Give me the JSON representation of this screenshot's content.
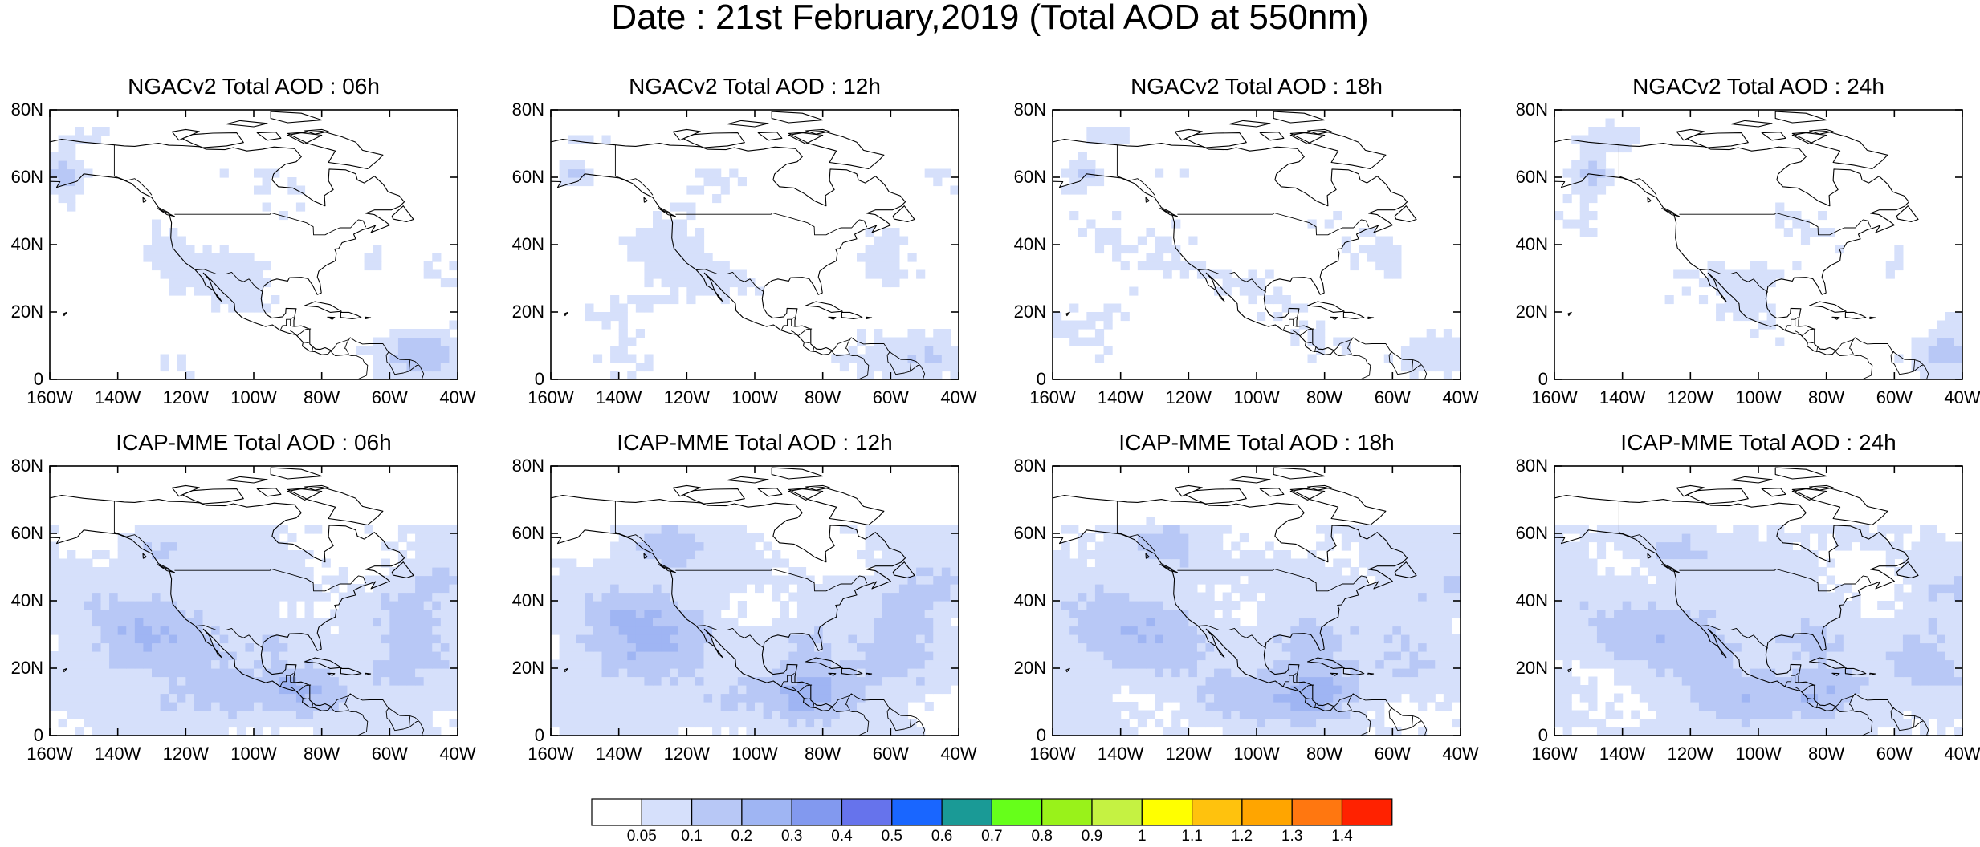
{
  "title": "Date : 21st February,2019 (Total AOD at 550nm)",
  "lat_ticks": [
    "80N",
    "60N",
    "40N",
    "20N",
    "0"
  ],
  "lon_ticks": [
    "160W",
    "140W",
    "120W",
    "100W",
    "80W",
    "60W",
    "40W"
  ],
  "panels": [
    {
      "title": "NGACv2 Total AOD : 06h",
      "model": "NGACv2",
      "hour": "06h"
    },
    {
      "title": "NGACv2 Total AOD : 12h",
      "model": "NGACv2",
      "hour": "12h"
    },
    {
      "title": "NGACv2 Total AOD : 18h",
      "model": "NGACv2",
      "hour": "18h"
    },
    {
      "title": "NGACv2 Total AOD : 24h",
      "model": "NGACv2",
      "hour": "24h"
    },
    {
      "title": "ICAP-MME Total AOD : 06h",
      "model": "ICAP-MME",
      "hour": "06h"
    },
    {
      "title": "ICAP-MME Total AOD : 12h",
      "model": "ICAP-MME",
      "hour": "12h"
    },
    {
      "title": "ICAP-MME Total AOD : 18h",
      "model": "ICAP-MME",
      "hour": "18h"
    },
    {
      "title": "ICAP-MME Total AOD : 24h",
      "model": "ICAP-MME",
      "hour": "24h"
    }
  ],
  "colorbar": {
    "labels": [
      "0.05",
      "0.1",
      "0.2",
      "0.3",
      "0.4",
      "0.5",
      "0.6",
      "0.7",
      "0.8",
      "0.9",
      "1",
      "1.1",
      "1.2",
      "1.3",
      "1.4"
    ],
    "colors": [
      "#ffffff",
      "#d6e0fb",
      "#b8c8f6",
      "#9fb5f3",
      "#8299ef",
      "#6673ec",
      "#1966ff",
      "#1a9a96",
      "#66ff1a",
      "#99f21a",
      "#c5f242",
      "#ffff00",
      "#ffc20d",
      "#ffa500",
      "#ff7710",
      "#ff2200"
    ]
  }
}
